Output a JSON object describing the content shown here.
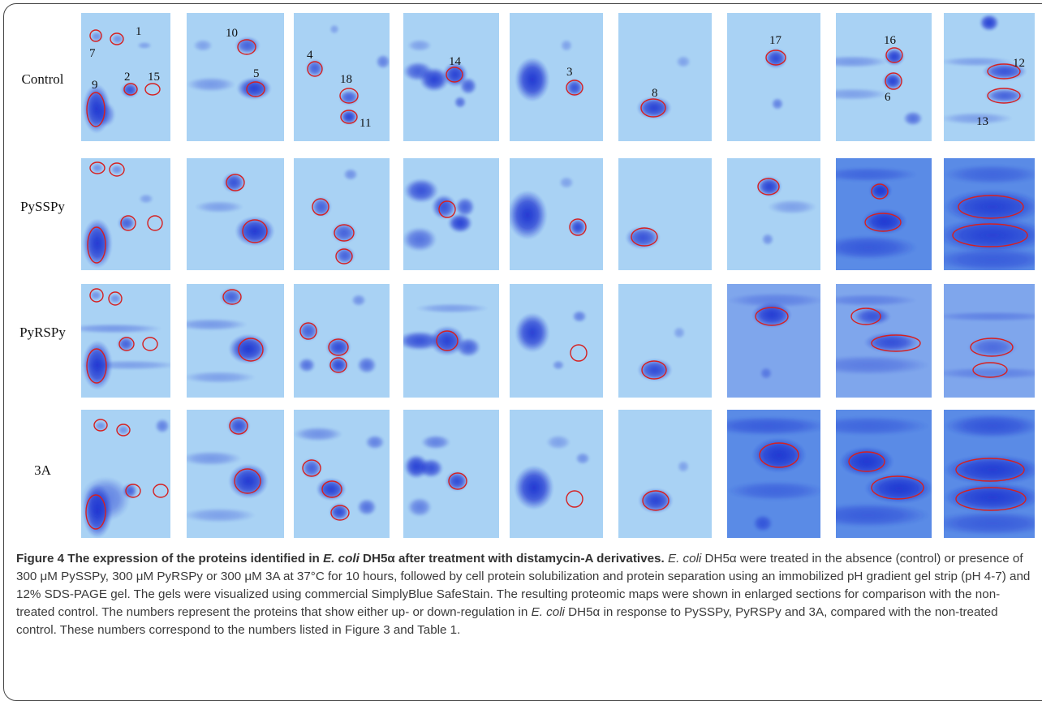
{
  "row_labels": [
    "Control",
    "PySSPy",
    "PyRSPy",
    "3A"
  ],
  "spot_labels": [
    "1",
    "2",
    "3",
    "4",
    "5",
    "6",
    "7",
    "8",
    "9",
    "10",
    "11",
    "12",
    "13",
    "14",
    "15",
    "16",
    "17",
    "18"
  ],
  "colors": {
    "gel_light": "#a9d2f4",
    "gel_dark": "#1a2fd0",
    "circle": "#d62020"
  },
  "caption": {
    "title_a": "Figure 4 The expression of the proteins identified in ",
    "title_italic": "E. coli",
    "title_b": " DH5α after treatment with distamycin-A derivatives.",
    "body_italic_1": "E. coli",
    "body_1": " DH5α were treated in the absence (control) or presence of 300 μM PySSPy, 300 μM PyRSPy or 300 μM 3A at 37°C for 10 hours, followed by cell protein solubilization and protein separation using an immobilized pH gradient gel strip (pH 4-7) and 12% SDS-PAGE gel. The gels were visualized using commercial SimplyBlue SafeStain. The resulting proteomic maps were shown in enlarged sections for comparison with the non-treated control. The numbers represent the proteins that show either up- or down-regulation in ",
    "body_italic_2": "E. coli",
    "body_2": " DH5α in response to PySSPy, PyRSPy and 3A, compared with the non-treated control. These numbers correspond to the numbers listed in Figure 3 and Table 1."
  }
}
